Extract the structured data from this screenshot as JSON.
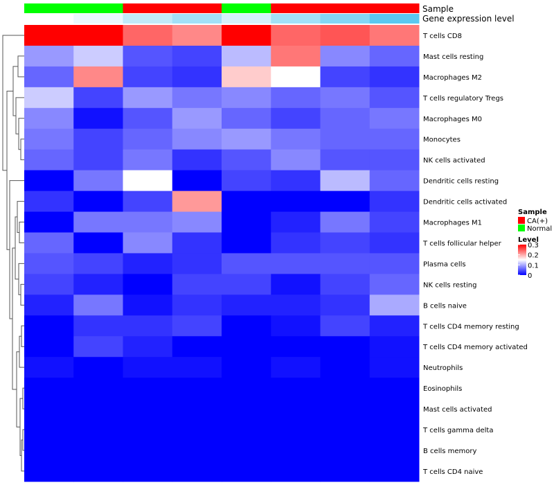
{
  "chart_data": {
    "type": "heatmap",
    "annotations": [
      {
        "label": "Sample",
        "values": [
          "Normal",
          "Normal",
          "CA(+)",
          "CA(+)",
          "Normal",
          "CA(+)",
          "CA(+)",
          "CA(+)"
        ]
      },
      {
        "label": "Gene expression level",
        "values": [
          0.0,
          0.02,
          0.06,
          0.09,
          0.04,
          0.09,
          0.12,
          0.16
        ]
      }
    ],
    "rows": [
      "T cells CD8",
      "Mast cells resting",
      "Macrophages M2",
      "T cells regulatory  Tregs",
      "Macrophages M0",
      "Monocytes",
      "NK cells activated",
      "Dendritic cells resting",
      "Dendritic cells activated",
      "Macrophages M1",
      "T cells follicular helper",
      "Plasma cells",
      "NK cells resting",
      "B cells naive",
      "T cells CD4 memory resting",
      "T cells CD4 memory activated",
      "Neutrophils",
      "Eosinophils",
      "Mast cells activated",
      "T cells gamma delta",
      "B cells memory",
      "T cells CD4 naive"
    ],
    "columns": 8,
    "values": [
      [
        0.3,
        0.3,
        0.24,
        0.22,
        0.3,
        0.24,
        0.25,
        0.23
      ],
      [
        0.09,
        0.12,
        0.05,
        0.04,
        0.11,
        0.23,
        0.08,
        0.06
      ],
      [
        0.06,
        0.22,
        0.04,
        0.03,
        0.18,
        0.15,
        0.04,
        0.03
      ],
      [
        0.12,
        0.04,
        0.09,
        0.07,
        0.08,
        0.06,
        0.07,
        0.05
      ],
      [
        0.08,
        0.01,
        0.05,
        0.09,
        0.06,
        0.04,
        0.06,
        0.07
      ],
      [
        0.07,
        0.04,
        0.06,
        0.08,
        0.09,
        0.07,
        0.06,
        0.06
      ],
      [
        0.06,
        0.04,
        0.07,
        0.03,
        0.05,
        0.08,
        0.05,
        0.05
      ],
      [
        0.0,
        0.07,
        0.15,
        0.0,
        0.04,
        0.03,
        0.11,
        0.06
      ],
      [
        0.03,
        0.0,
        0.04,
        0.21,
        0.0,
        0.0,
        0.0,
        0.03
      ],
      [
        0.0,
        0.07,
        0.07,
        0.08,
        0.0,
        0.02,
        0.07,
        0.04
      ],
      [
        0.06,
        0.0,
        0.08,
        0.03,
        0.0,
        0.03,
        0.04,
        0.03
      ],
      [
        0.05,
        0.04,
        0.02,
        0.03,
        0.05,
        0.05,
        0.05,
        0.05
      ],
      [
        0.04,
        0.02,
        0.0,
        0.04,
        0.04,
        0.01,
        0.04,
        0.06
      ],
      [
        0.02,
        0.07,
        0.01,
        0.03,
        0.02,
        0.02,
        0.03,
        0.1
      ],
      [
        0.0,
        0.03,
        0.03,
        0.04,
        0.0,
        0.01,
        0.04,
        0.02
      ],
      [
        0.0,
        0.04,
        0.02,
        0.0,
        0.0,
        0.0,
        0.0,
        0.01
      ],
      [
        0.01,
        0.0,
        0.01,
        0.01,
        0.0,
        0.01,
        0.0,
        0.01
      ],
      [
        0.0,
        0.0,
        0.0,
        0.0,
        0.0,
        0.0,
        0.0,
        0.0
      ],
      [
        0.0,
        0.0,
        0.0,
        0.0,
        0.0,
        0.0,
        0.0,
        0.0
      ],
      [
        0.0,
        0.0,
        0.0,
        0.0,
        0.0,
        0.0,
        0.0,
        0.0
      ],
      [
        0.0,
        0.0,
        0.0,
        0.0,
        0.0,
        0.0,
        0.0,
        0.0
      ],
      [
        0.0,
        0.0,
        0.0,
        0.0,
        0.0,
        0.0,
        0.0,
        0.0
      ]
    ],
    "color_scale": {
      "min": 0,
      "mid": 0.15,
      "max": 0.3,
      "low": "#0000ff",
      "midColor": "#ffffff",
      "high": "#ff0000"
    },
    "legend": {
      "sample_title": "Sample",
      "sample_items": [
        {
          "label": "CA(+)",
          "color": "#ff0000"
        },
        {
          "label": "Normal",
          "color": "#00ff00"
        }
      ],
      "level_title": "Level",
      "level_ticks": [
        "0.3",
        "0.2",
        "0.1",
        "0"
      ]
    },
    "gene_level_colors": {
      "low": "#ffffff",
      "high": "#5bc8f0"
    }
  }
}
